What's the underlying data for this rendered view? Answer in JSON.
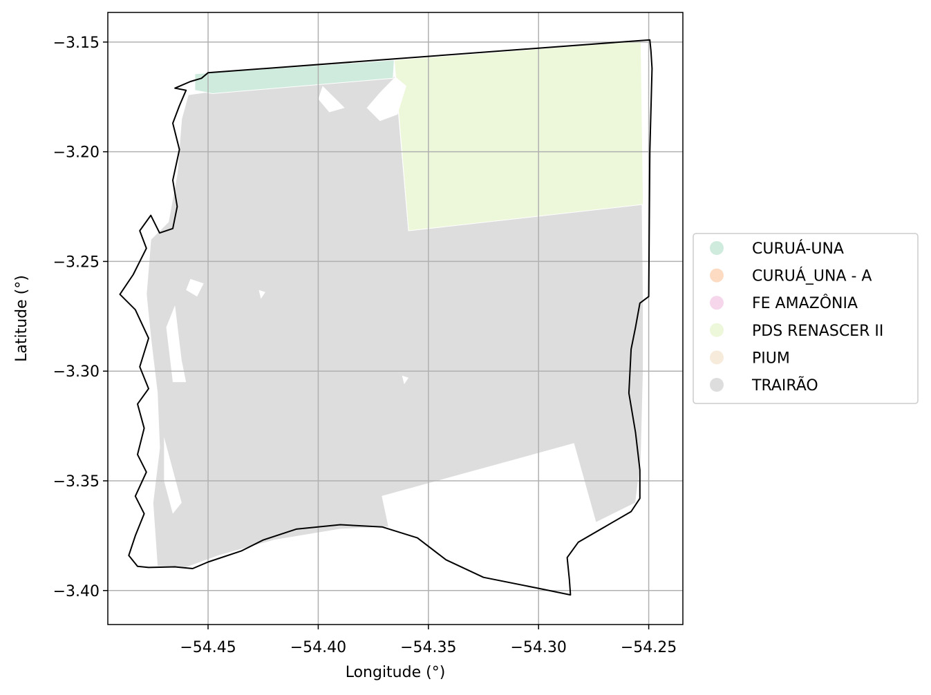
{
  "chart_data": {
    "type": "map",
    "xlabel": "Longitude (°)",
    "ylabel": "Latitude (°)",
    "xlim": [
      -54.4955,
      -54.2345
    ],
    "ylim": [
      -3.4155,
      -3.1365
    ],
    "x_ticks": [
      {
        "value": -54.45,
        "label": "−54.45"
      },
      {
        "value": -54.4,
        "label": "−54.40"
      },
      {
        "value": -54.35,
        "label": "−54.35"
      },
      {
        "value": -54.3,
        "label": "−54.30"
      },
      {
        "value": -54.25,
        "label": "−54.25"
      }
    ],
    "y_ticks": [
      {
        "value": -3.15,
        "label": "−3.15"
      },
      {
        "value": -3.2,
        "label": "−3.20"
      },
      {
        "value": -3.25,
        "label": "−3.25"
      },
      {
        "value": -3.3,
        "label": "−3.30"
      },
      {
        "value": -3.35,
        "label": "−3.35"
      },
      {
        "value": -3.4,
        "label": "−3.40"
      }
    ],
    "grid": true,
    "legend_position": "right",
    "legend": [
      {
        "label": "CURUÁ-UNA",
        "color": "#cfebdd"
      },
      {
        "label": "CURUÁ_UNA - A",
        "color": "#fddbc3"
      },
      {
        "label": "FE AMAZÔNIA",
        "color": "#f5d6ea"
      },
      {
        "label": "PDS RENASCER II",
        "color": "#edf7d9"
      },
      {
        "label": "PIUM",
        "color": "#f7ecdc"
      },
      {
        "label": "TRAIRÃO",
        "color": "#dddddd"
      }
    ],
    "regions": [
      {
        "name": "TRAIRÃO",
        "color": "#dddddd",
        "coords": [
          [
            -54.45,
            -3.1728
          ],
          [
            -54.385,
            -3.1658
          ],
          [
            -54.365,
            -3.1658
          ],
          [
            -54.359,
            -3.236
          ],
          [
            -54.253,
            -3.224
          ],
          [
            -54.2525,
            -3.266
          ],
          [
            -54.2525,
            -3.3
          ],
          [
            -54.2535,
            -3.34
          ],
          [
            -54.256,
            -3.36
          ],
          [
            -54.274,
            -3.369
          ],
          [
            -54.284,
            -3.333
          ],
          [
            -54.371,
            -3.357
          ],
          [
            -54.368,
            -3.371
          ],
          [
            -54.39,
            -3.372
          ],
          [
            -54.42,
            -3.377
          ],
          [
            -54.445,
            -3.384
          ],
          [
            -54.46,
            -3.3895
          ],
          [
            -54.473,
            -3.389
          ],
          [
            -54.475,
            -3.36
          ],
          [
            -54.472,
            -3.335
          ],
          [
            -54.473,
            -3.31
          ],
          [
            -54.476,
            -3.285
          ],
          [
            -54.478,
            -3.265
          ],
          [
            -54.476,
            -3.24
          ],
          [
            -54.468,
            -3.232
          ],
          [
            -54.464,
            -3.21
          ],
          [
            -54.462,
            -3.185
          ],
          [
            -54.459,
            -3.174
          ]
        ]
      },
      {
        "name": "PDS RENASCER II",
        "color": "#edf7d9",
        "coords": [
          [
            -54.3655,
            -3.1582
          ],
          [
            -54.2535,
            -3.1495
          ],
          [
            -54.2525,
            -3.224
          ],
          [
            -54.359,
            -3.236
          ]
        ]
      },
      {
        "name": "CURUÁ-UNA",
        "color": "#cfebdd",
        "coords": [
          [
            -54.456,
            -3.1645
          ],
          [
            -54.3655,
            -3.1582
          ],
          [
            -54.366,
            -3.1665
          ],
          [
            -54.448,
            -3.1735
          ],
          [
            -54.456,
            -3.172
          ]
        ]
      }
    ],
    "holes": [
      [
        [
          -54.365,
          -3.1658
        ],
        [
          -54.372,
          -3.173
        ],
        [
          -54.378,
          -3.18
        ],
        [
          -54.372,
          -3.186
        ],
        [
          -54.364,
          -3.183
        ],
        [
          -54.36,
          -3.17
        ]
      ],
      [
        [
          -54.398,
          -3.17
        ],
        [
          -54.392,
          -3.176
        ],
        [
          -54.388,
          -3.18
        ],
        [
          -54.395,
          -3.182
        ],
        [
          -54.4,
          -3.176
        ]
      ],
      [
        [
          -54.465,
          -3.27
        ],
        [
          -54.462,
          -3.295
        ],
        [
          -54.46,
          -3.305
        ],
        [
          -54.466,
          -3.305
        ],
        [
          -54.469,
          -3.28
        ]
      ],
      [
        [
          -54.47,
          -3.33
        ],
        [
          -54.462,
          -3.36
        ],
        [
          -54.466,
          -3.365
        ],
        [
          -54.47,
          -3.35
        ]
      ],
      [
        [
          -54.458,
          -3.258
        ],
        [
          -54.452,
          -3.26
        ],
        [
          -54.455,
          -3.266
        ],
        [
          -54.46,
          -3.263
        ]
      ],
      [
        [
          -54.427,
          -3.263
        ],
        [
          -54.424,
          -3.264
        ],
        [
          -54.426,
          -3.267
        ]
      ],
      [
        [
          -54.362,
          -3.302
        ],
        [
          -54.359,
          -3.303
        ],
        [
          -54.361,
          -3.306
        ]
      ]
    ],
    "boundary": [
      [
        -54.45,
        -3.164
      ],
      [
        -54.2495,
        -3.149
      ],
      [
        -54.249,
        -3.154
      ],
      [
        -54.2485,
        -3.162
      ],
      [
        -54.2495,
        -3.2
      ],
      [
        -54.25,
        -3.266
      ],
      [
        -54.254,
        -3.269
      ],
      [
        -54.256,
        -3.28
      ],
      [
        -54.258,
        -3.29
      ],
      [
        -54.259,
        -3.31
      ],
      [
        -54.256,
        -3.328
      ],
      [
        -54.254,
        -3.345
      ],
      [
        -54.254,
        -3.358
      ],
      [
        -54.258,
        -3.364
      ],
      [
        -54.27,
        -3.371
      ],
      [
        -54.282,
        -3.378
      ],
      [
        -54.287,
        -3.385
      ],
      [
        -54.286,
        -3.395
      ],
      [
        -54.2855,
        -3.402
      ],
      [
        -54.3,
        -3.399
      ],
      [
        -54.325,
        -3.394
      ],
      [
        -54.342,
        -3.386
      ],
      [
        -54.355,
        -3.376
      ],
      [
        -54.371,
        -3.371
      ],
      [
        -54.39,
        -3.37
      ],
      [
        -54.41,
        -3.372
      ],
      [
        -54.425,
        -3.377
      ],
      [
        -54.435,
        -3.382
      ],
      [
        -54.45,
        -3.387
      ],
      [
        -54.457,
        -3.39
      ],
      [
        -54.465,
        -3.3892
      ],
      [
        -54.477,
        -3.3895
      ],
      [
        -54.482,
        -3.389
      ],
      [
        -54.486,
        -3.384
      ],
      [
        -54.483,
        -3.375
      ],
      [
        -54.479,
        -3.365
      ],
      [
        -54.483,
        -3.357
      ],
      [
        -54.478,
        -3.346
      ],
      [
        -54.482,
        -3.338
      ],
      [
        -54.479,
        -3.326
      ],
      [
        -54.482,
        -3.315
      ],
      [
        -54.477,
        -3.308
      ],
      [
        -54.481,
        -3.298
      ],
      [
        -54.477,
        -3.285
      ],
      [
        -54.483,
        -3.272
      ],
      [
        -54.49,
        -3.265
      ],
      [
        -54.484,
        -3.256
      ],
      [
        -54.478,
        -3.244
      ],
      [
        -54.481,
        -3.236
      ],
      [
        -54.476,
        -3.229
      ],
      [
        -54.472,
        -3.237
      ],
      [
        -54.466,
        -3.235
      ],
      [
        -54.464,
        -3.225
      ],
      [
        -54.466,
        -3.213
      ],
      [
        -54.463,
        -3.199
      ],
      [
        -54.466,
        -3.187
      ],
      [
        -54.463,
        -3.179
      ],
      [
        -54.46,
        -3.172
      ],
      [
        -54.465,
        -3.171
      ],
      [
        -54.458,
        -3.168
      ],
      [
        -54.453,
        -3.1665
      ]
    ]
  }
}
